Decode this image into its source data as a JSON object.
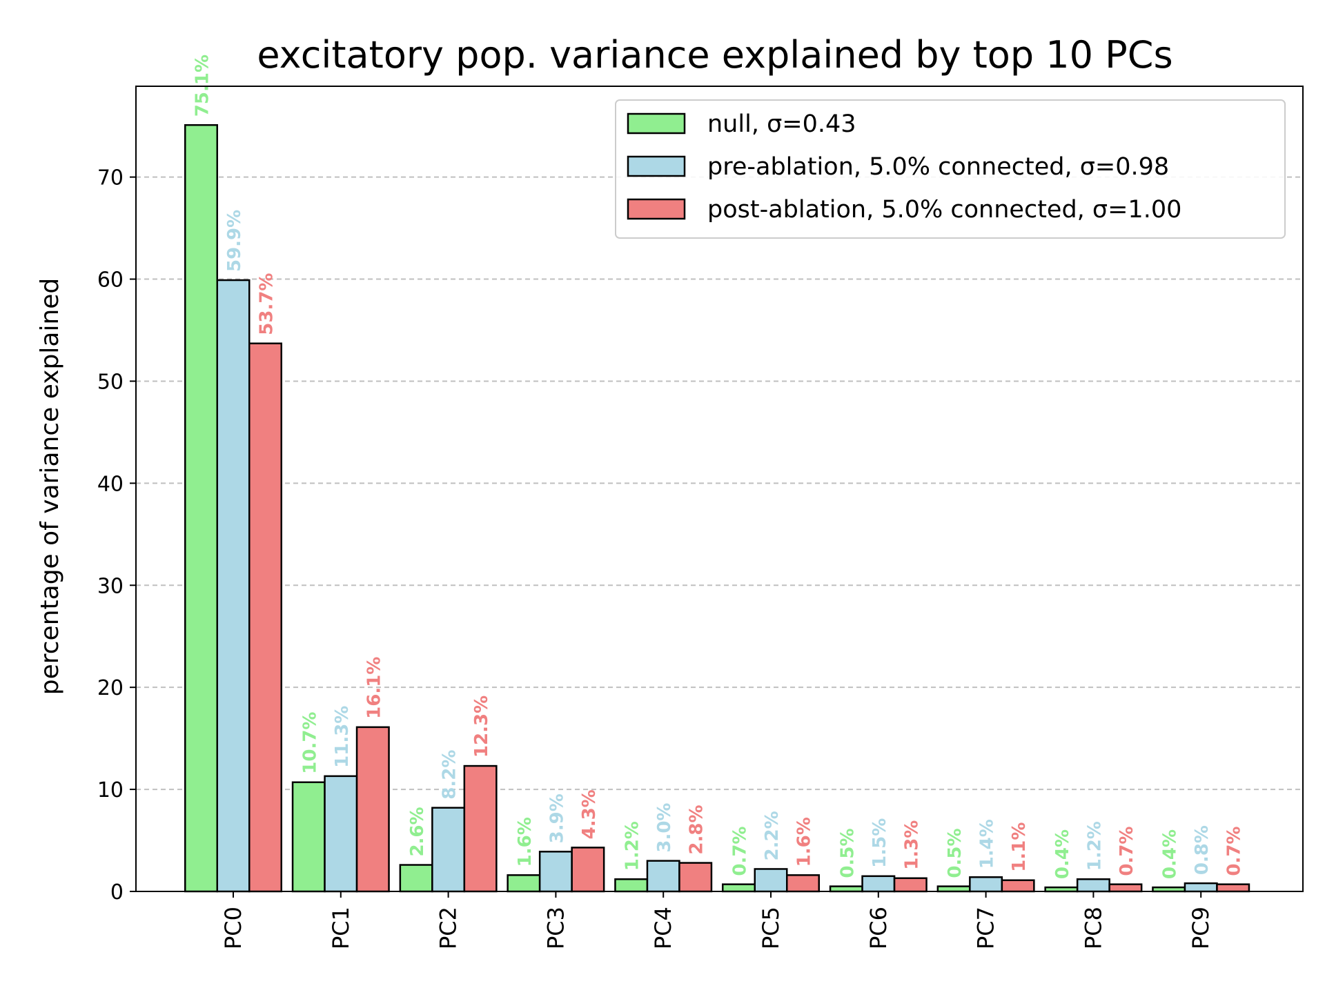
{
  "chart_data": {
    "type": "bar",
    "title": "excitatory pop. variance explained by top 10 PCs",
    "xlabel": "",
    "ylabel": "percentage of variance explained",
    "ylim": [
      0,
      78.9
    ],
    "yticks": [
      "0",
      "10",
      "20",
      "30",
      "40",
      "50",
      "60",
      "70"
    ],
    "grid": "horizontal dashed",
    "legend_position": "top-right",
    "categories": [
      "PC0",
      "PC1",
      "PC2",
      "PC3",
      "PC4",
      "PC5",
      "PC6",
      "PC7",
      "PC8",
      "PC9"
    ],
    "series": [
      {
        "name": "null, σ=0.43",
        "color": "#90ee90",
        "values": [
          75.1,
          10.7,
          2.6,
          1.6,
          1.2,
          0.7,
          0.5,
          0.5,
          0.4,
          0.4
        ],
        "labels": [
          "75.1%",
          "10.7%",
          "2.6%",
          "1.6%",
          "1.2%",
          "0.7%",
          "0.5%",
          "0.5%",
          "0.4%",
          "0.4%"
        ]
      },
      {
        "name": "pre-ablation, 5.0% connected, σ=0.98",
        "color": "#add8e6",
        "values": [
          59.9,
          11.3,
          8.2,
          3.9,
          3.0,
          2.2,
          1.5,
          1.4,
          1.2,
          0.8
        ],
        "labels": [
          "59.9%",
          "11.3%",
          "8.2%",
          "3.9%",
          "3.0%",
          "2.2%",
          "1.5%",
          "1.4%",
          "1.2%",
          "0.8%"
        ]
      },
      {
        "name": "post-ablation, 5.0% connected, σ=1.00",
        "color": "#f08080",
        "values": [
          53.7,
          16.1,
          12.3,
          4.3,
          2.8,
          1.6,
          1.3,
          1.1,
          0.7,
          0.7
        ],
        "labels": [
          "53.7%",
          "16.1%",
          "12.3%",
          "4.3%",
          "2.8%",
          "1.6%",
          "1.3%",
          "1.1%",
          "0.7%",
          "0.7%"
        ]
      }
    ]
  }
}
